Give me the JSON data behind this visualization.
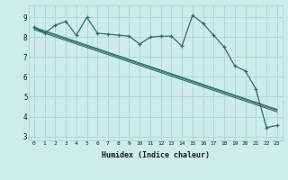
{
  "xlabel": "Humidex (Indice chaleur)",
  "bg_color": "#ceecea",
  "grid_color": "#b0d8d4",
  "line_color": "#2e6e6a",
  "x_ticks": [
    0,
    1,
    2,
    3,
    4,
    5,
    6,
    7,
    8,
    9,
    10,
    11,
    12,
    13,
    14,
    15,
    16,
    17,
    18,
    19,
    20,
    21,
    22,
    23
  ],
  "y_ticks": [
    3,
    4,
    5,
    6,
    7,
    8,
    9
  ],
  "ylim": [
    2.8,
    9.6
  ],
  "xlim": [
    -0.5,
    23.5
  ],
  "main_y": [
    8.5,
    8.2,
    8.6,
    8.8,
    8.1,
    9.0,
    8.2,
    8.15,
    8.1,
    8.05,
    7.65,
    8.0,
    8.05,
    8.05,
    7.55,
    9.1,
    8.7,
    8.1,
    7.5,
    6.55,
    6.3,
    5.4,
    3.45,
    3.55
  ],
  "trend1_y": [
    8.5,
    8.32,
    8.14,
    7.96,
    7.78,
    7.6,
    7.42,
    7.24,
    7.06,
    6.88,
    6.7,
    6.52,
    6.34,
    6.16,
    5.98,
    5.8,
    5.62,
    5.44,
    5.26,
    5.08,
    4.9,
    4.72,
    4.54,
    4.36
  ],
  "trend2_y": [
    8.45,
    8.27,
    8.09,
    7.91,
    7.73,
    7.55,
    7.37,
    7.19,
    7.01,
    6.83,
    6.65,
    6.47,
    6.29,
    6.11,
    5.93,
    5.75,
    5.57,
    5.39,
    5.21,
    5.03,
    4.85,
    4.67,
    4.49,
    4.31
  ],
  "trend3_y": [
    8.38,
    8.2,
    8.02,
    7.84,
    7.66,
    7.48,
    7.3,
    7.12,
    6.94,
    6.76,
    6.58,
    6.4,
    6.22,
    6.04,
    5.86,
    5.68,
    5.5,
    5.32,
    5.14,
    4.96,
    4.78,
    4.6,
    4.42,
    4.24
  ]
}
